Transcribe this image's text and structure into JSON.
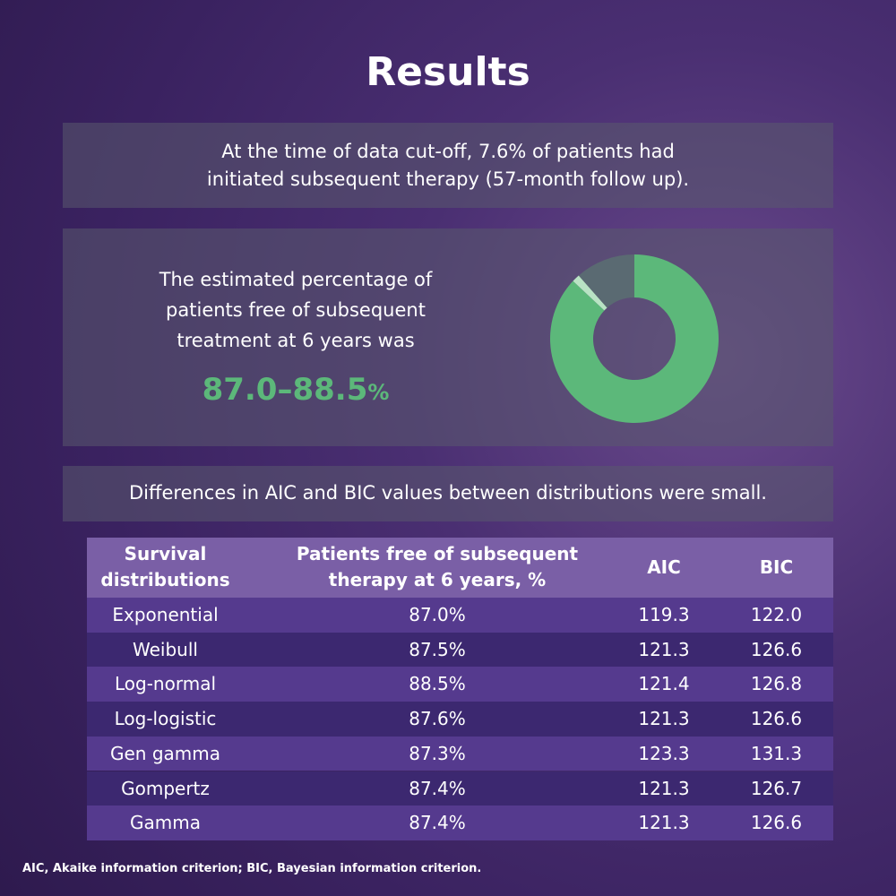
{
  "header": {
    "title": "Results"
  },
  "summary": {
    "lines": [
      "At the time of data cut-off, 7.6% of patients had",
      "initiated subsequent therapy (57-month follow up)."
    ]
  },
  "estimate": {
    "lines": [
      "The estimated percentage of",
      "patients free of subsequent",
      "treatment at 6 years was"
    ],
    "range": "87.0–88.5",
    "unit": "%"
  },
  "chart_data": {
    "type": "donut",
    "values": [
      87.0,
      1.5,
      11.5
    ],
    "colors": [
      "#5cb87a",
      "#b9e3c4",
      "#5a6a72"
    ]
  },
  "note": "Differences in AIC and BIC values between distributions were small.",
  "table": {
    "header": [
      [
        "Survival",
        "distributions"
      ],
      [
        "Patients free of subsequent",
        "therapy at 6 years, %"
      ],
      [
        "AIC"
      ],
      [
        "BIC"
      ]
    ],
    "rows": [
      [
        "Exponential",
        "87.0%",
        "119.3",
        "122.0"
      ],
      [
        "Weibull",
        "87.5%",
        "121.3",
        "126.6"
      ],
      [
        "Log-normal",
        "88.5%",
        "121.4",
        "126.8"
      ],
      [
        "Log-logistic",
        "87.6%",
        "121.3",
        "126.6"
      ],
      [
        "Gen gamma",
        "87.3%",
        "123.3",
        "131.3"
      ],
      [
        "Gompertz",
        "87.4%",
        "121.3",
        "126.7"
      ],
      [
        "Gamma",
        "87.4%",
        "121.3",
        "126.6"
      ]
    ]
  },
  "footnote": "AIC, Akaike information criterion; BIC, Bayesian information criterion."
}
